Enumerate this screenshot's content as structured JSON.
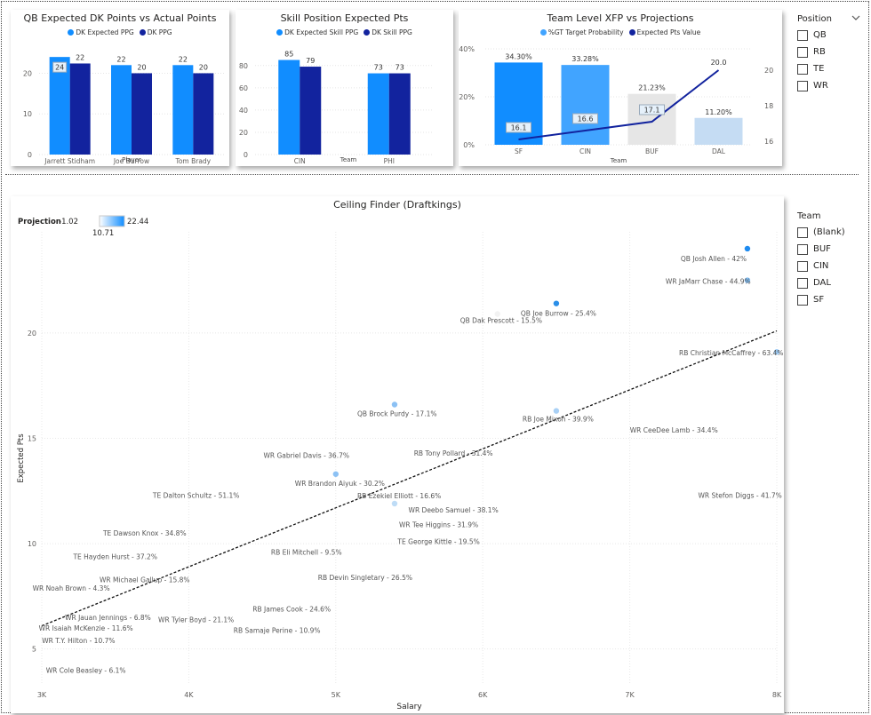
{
  "qb_chart": {
    "title": "QB Expected DK Points vs Actual Points",
    "legend": [
      {
        "label": "DK Expected PPG",
        "color": "#118DFF"
      },
      {
        "label": "DK PPG",
        "color": "#12239E"
      }
    ],
    "xlabel": "Player",
    "yticks": [
      "0",
      "10",
      "20"
    ]
  },
  "skill_chart": {
    "title": "Skill Position Expected Pts",
    "legend": [
      {
        "label": "DK Expected Skill PPG",
        "color": "#118DFF"
      },
      {
        "label": "DK Skill PPG",
        "color": "#12239E"
      }
    ],
    "xlabel": "Team",
    "yticks": [
      "0",
      "20",
      "40",
      "60",
      "80"
    ]
  },
  "team_chart": {
    "title": "Team Level XFP vs Projections",
    "legend": [
      {
        "label": "%GT Target Probability",
        "color": "#41A4FF"
      },
      {
        "label": "Expected Pts Value",
        "color": "#12239E"
      }
    ],
    "xlabel": "Team",
    "yticks_left": [
      "0%",
      "20%",
      "40%"
    ],
    "yticks_right": [
      "16",
      "18",
      "20"
    ]
  },
  "scatter_chart": {
    "title": "Ceiling Finder (Draftkings)",
    "legend_label": "Projection",
    "legend_min": "-1.02",
    "legend_max": "22.44",
    "legend_mid": "10.71",
    "xlabel": "Salary",
    "ylabel": "Expected Pts",
    "xticks": [
      "3K",
      "4K",
      "5K",
      "6K",
      "7K",
      "8K"
    ],
    "yticks": [
      "5",
      "10",
      "15",
      "20"
    ]
  },
  "position_slicer": {
    "title": "Position",
    "options": [
      "QB",
      "RB",
      "TE",
      "WR"
    ]
  },
  "team_slicer": {
    "title": "Team",
    "options": [
      "(Blank)",
      "BUF",
      "CIN",
      "DAL",
      "SF"
    ]
  },
  "chart_data": [
    {
      "type": "bar",
      "title": "QB Expected DK Points vs Actual Points",
      "xlabel": "Player",
      "categories": [
        "Jarrett Stidham",
        "Joe Burrow",
        "Tom Brady"
      ],
      "series": [
        {
          "name": "DK Expected PPG",
          "values": [
            24,
            22,
            22
          ],
          "labels": [
            "24",
            "22",
            "22"
          ]
        },
        {
          "name": "DK PPG",
          "values": [
            22.4,
            20,
            20
          ],
          "labels": [
            "22",
            "20",
            "20"
          ]
        }
      ],
      "ylim": [
        0,
        26
      ],
      "legend": "top"
    },
    {
      "type": "bar",
      "title": "Skill Position Expected Pts",
      "xlabel": "Team",
      "categories": [
        "CIN",
        "PHI"
      ],
      "series": [
        {
          "name": "DK Expected Skill PPG",
          "values": [
            85,
            73
          ],
          "labels": [
            "85",
            "73"
          ]
        },
        {
          "name": "DK Skill PPG",
          "values": [
            79,
            73
          ],
          "labels": [
            "79",
            "73"
          ]
        }
      ],
      "ylim": [
        0,
        95
      ],
      "legend": "top"
    },
    {
      "type": "bar",
      "title": "Team Level XFP vs Projections",
      "xlabel": "Team",
      "categories": [
        "SF",
        "CIN",
        "BUF",
        "DAL"
      ],
      "series": [
        {
          "name": "%GT Target Probability",
          "values": [
            34.3,
            33.28,
            21.23,
            11.2
          ],
          "labels": [
            "34.30%",
            "33.28%",
            "21.23%",
            "11.20%"
          ],
          "colors": [
            "#118DFF",
            "#41A4FF",
            "#E6E6E6",
            "#C5DCF3"
          ]
        },
        {
          "name": "Expected Pts Value",
          "type": "line",
          "values": [
            16.1,
            16.6,
            17.1,
            20.0
          ],
          "labels": [
            "16.1",
            "16.6",
            "17.1",
            "20.0"
          ]
        }
      ],
      "ylim_left": [
        0,
        40
      ],
      "ylim_right": [
        15.8,
        21.2
      ],
      "legend": "top"
    },
    {
      "type": "scatter",
      "title": "Ceiling Finder (Draftkings)",
      "xlabel": "Salary",
      "ylabel": "Expected Pts",
      "xlim": [
        3000,
        8000
      ],
      "ylim": [
        3.3,
        24.8
      ],
      "points": [
        {
          "label": "QB Josh Allen - 42%",
          "x": 7800,
          "y": 24.0,
          "color": "#1E8BF0",
          "label_dx": -75,
          "label_dy": 14
        },
        {
          "label": "WR JaMarr Chase - 44.9%",
          "x": 7800,
          "y": 22.5,
          "color": "#7DBBF2",
          "label_dx": -92,
          "label_dy": 4
        },
        {
          "label": "QB Joe Burrow - 25.4%",
          "x": 6500,
          "y": 21.4,
          "color": "#2B8FE8",
          "label_dx": -40,
          "label_dy": 14
        },
        {
          "label": "QB Dak Prescott - 15.5%",
          "x": 6100,
          "y": 20.9,
          "color": "#F2F2F2",
          "label_dx": -42,
          "label_dy": 10
        },
        {
          "label": "RB Christian McCaffrey - 63.4%",
          "x": 8000,
          "y": 19.1,
          "color": "#9DCBF5",
          "label_dx": -110,
          "label_dy": 4
        },
        {
          "label": "QB Brock Purdy - 17.1%",
          "x": 5400,
          "y": 16.6,
          "color": "#8CC1F4",
          "label_dx": -42,
          "label_dy": 13
        },
        {
          "label": "RB Joe Mixon - 39.9%",
          "x": 6500,
          "y": 16.3,
          "color": "#A9D0F5",
          "label_dx": -38,
          "label_dy": 12
        },
        {
          "label": "WR CeeDee Lamb - 34.4%",
          "x": 7300,
          "y": 15.4,
          "color": "#FFFFFF"
        },
        {
          "label": "RB Tony Pollard - 31.4%",
          "x": 5800,
          "y": 14.3,
          "color": "#FFFFFF"
        },
        {
          "label": "WR Gabriel Davis - 36.7%",
          "x": 4800,
          "y": 14.2,
          "color": "#FFFFFF"
        },
        {
          "label": "WR Brandon Aiyuk - 30.2%",
          "x": 5000,
          "y": 13.3,
          "color": "#8CC1F4",
          "label_dx": -46,
          "label_dy": 13
        },
        {
          "label": "TE Dalton Schultz - 51.1%",
          "x": 4050,
          "y": 12.3,
          "color": "#FFFFFF"
        },
        {
          "label": "RB Ezekiel Elliott - 16.6%",
          "x": 5400,
          "y": 11.9,
          "color": "#BEDCF6",
          "label_dx": -42,
          "label_dy": -6
        },
        {
          "label": "WR Stefon Diggs - 41.7%",
          "x": 7750,
          "y": 12.3,
          "color": "#FFFFFF"
        },
        {
          "label": "WR Deebo Samuel - 38.1%",
          "x": 5800,
          "y": 11.6,
          "color": "#FFFFFF"
        },
        {
          "label": "WR Tee Higgins - 31.9%",
          "x": 5700,
          "y": 10.9,
          "color": "#FFFFFF"
        },
        {
          "label": "TE Dawson Knox - 34.8%",
          "x": 3700,
          "y": 10.5,
          "color": "#FFFFFF"
        },
        {
          "label": "TE George Kittle - 19.5%",
          "x": 5700,
          "y": 10.1,
          "color": "#FFFFFF"
        },
        {
          "label": "RB Eli Mitchell - 9.5%",
          "x": 4800,
          "y": 9.6,
          "color": "#FFFFFF"
        },
        {
          "label": "TE Hayden Hurst - 37.2%",
          "x": 3500,
          "y": 9.4,
          "color": "#FFFFFF"
        },
        {
          "label": "RB Devin Singletary - 26.5%",
          "x": 5200,
          "y": 8.4,
          "color": "#FFFFFF"
        },
        {
          "label": "WR Michael Gallup - 15.8%",
          "x": 3700,
          "y": 8.3,
          "color": "#FFFFFF"
        },
        {
          "label": "WR Noah Brown - 4.3%",
          "x": 3200,
          "y": 7.9,
          "color": "#FFFFFF"
        },
        {
          "label": "RB James Cook - 24.6%",
          "x": 4700,
          "y": 6.9,
          "color": "#FFFFFF"
        },
        {
          "label": "WR Jauan Jennings - 6.8%",
          "x": 3450,
          "y": 6.5,
          "color": "#FFFFFF"
        },
        {
          "label": "WR Tyler Boyd - 21.1%",
          "x": 4050,
          "y": 6.4,
          "color": "#FFFFFF"
        },
        {
          "label": "WR Isaiah McKenzie - 11.6%",
          "x": 3300,
          "y": 6.0,
          "color": "#FFFFFF"
        },
        {
          "label": "RB Samaje Perine - 10.9%",
          "x": 4600,
          "y": 5.9,
          "color": "#FFFFFF"
        },
        {
          "label": "WR T.Y. Hilton - 10.7%",
          "x": 3250,
          "y": 5.4,
          "color": "#FFFFFF"
        },
        {
          "label": "WR Cole Beasley - 6.1%",
          "x": 3300,
          "y": 4.0,
          "color": "#FFFFFF"
        }
      ],
      "trendline": [
        [
          3000,
          6.1
        ],
        [
          8000,
          20.1
        ]
      ],
      "grid": true
    }
  ]
}
